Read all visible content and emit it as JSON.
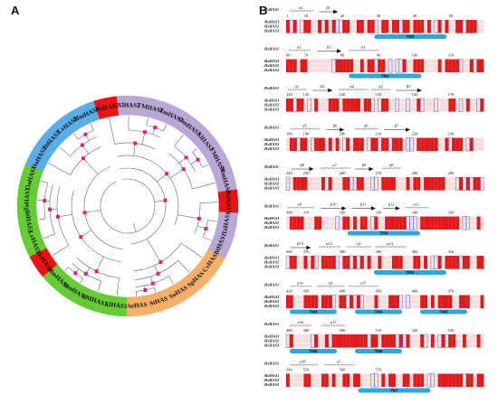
{
  "figure": {
    "panel_a_label": "A",
    "panel_b_label": "B"
  },
  "tree": {
    "leaves": [
      {
        "name": "HsHAS2",
        "group": "red"
      },
      {
        "name": "XlHAS2",
        "group": "purple"
      },
      {
        "name": "FMHAS2",
        "group": "purple"
      },
      {
        "name": "XmHAS2",
        "group": "purple"
      },
      {
        "name": "OmHAS1",
        "group": "purple"
      },
      {
        "name": "XlHAS1",
        "group": "purple"
      },
      {
        "name": "FMHAS1",
        "group": "purple"
      },
      {
        "name": "MmHAS1",
        "group": "purple"
      },
      {
        "name": "HsHAS1",
        "group": "red"
      },
      {
        "name": "TaHAS1",
        "group": "purple"
      },
      {
        "name": "BtHAS1",
        "group": "purple"
      },
      {
        "name": "CvHAS",
        "group": "orange"
      },
      {
        "name": "SpHAS",
        "group": "orange"
      },
      {
        "name": "SuHAS",
        "group": "orange"
      },
      {
        "name": "StHAS",
        "group": "orange"
      },
      {
        "name": "SeHAS",
        "group": "orange"
      },
      {
        "name": "XlHAS3",
        "group": "green"
      },
      {
        "name": "FMHAS3",
        "group": "green"
      },
      {
        "name": "XmHAS3",
        "group": "green"
      },
      {
        "name": "MmHAS3",
        "group": "green"
      },
      {
        "name": "HsHAS3",
        "group": "red"
      },
      {
        "name": "LvHAS3",
        "group": "green"
      },
      {
        "name": "BtHAS3",
        "group": "green"
      },
      {
        "name": "TaHAS3",
        "group": "green"
      },
      {
        "name": "OaHAS3",
        "group": "green"
      },
      {
        "name": "OaHAS2",
        "group": "blue"
      },
      {
        "name": "BtHAS2",
        "group": "blue"
      },
      {
        "name": "LvHAS2",
        "group": "blue"
      },
      {
        "name": "MmHAS2",
        "group": "blue"
      }
    ],
    "colors": {
      "red": "#ee1111",
      "purple": "#b9a7d6",
      "orange": "#f7b06a",
      "green": "#66cc33",
      "blue": "#5aaee8",
      "node": "#e0207a"
    }
  },
  "alignment": {
    "sequence_names": [
      "HaHAS1",
      "HsHAS2",
      "HsHAS3"
    ],
    "reference_name": "HsHAS1",
    "blocks": [
      {
        "start": "1",
        "ticks": [
          "10",
          "20",
          "30",
          "40",
          "50"
        ],
        "ss": [
          "α1",
          "β1"
        ],
        "tm": [
          "TM1"
        ]
      },
      {
        "start": "60",
        "ticks": [
          "70",
          "80",
          "90",
          "100",
          "110"
        ],
        "ss": [
          "α2",
          "β3",
          "α3"
        ],
        "tm": [
          "TM2"
        ]
      },
      {
        "start": "120",
        "ticks": [
          "130",
          "140",
          "150",
          "160",
          "170"
        ],
        "ss": [
          "η1",
          "β4",
          "α4",
          "η2",
          "β5"
        ],
        "tm": []
      },
      {
        "start": "180",
        "ticks": [
          "190",
          "200",
          "210",
          "220",
          "230"
        ],
        "ss": [
          "α5",
          "β6",
          "α6",
          "β7"
        ],
        "tm": []
      },
      {
        "start": "240",
        "ticks": [
          "250",
          "260",
          "270",
          "280",
          "290"
        ],
        "ss": [
          "β8",
          "α7",
          "β9",
          "α8"
        ],
        "tm": []
      },
      {
        "start": "300",
        "ticks": [
          "310",
          "320",
          "330",
          "340",
          "350"
        ],
        "ss": [
          "α9",
          "β10",
          "β11",
          "β12",
          "α11"
        ],
        "tm": [
          "TM3"
        ]
      },
      {
        "start": "360",
        "ticks": [
          "370",
          "380",
          "390",
          "400",
          "410"
        ],
        "ss": [
          "β13",
          "α12",
          "η3",
          "α13"
        ],
        "tm": [
          "TM3"
        ]
      },
      {
        "start": "420",
        "ticks": [
          "430",
          "440",
          "450",
          "460",
          "470"
        ],
        "ss": [
          "α14",
          "η4",
          "α15"
        ],
        "tm": [
          "TM3",
          "TM4",
          "TM5"
        ]
      },
      {
        "start": "480",
        "ticks": [
          "490",
          "500",
          "510",
          "520",
          "530"
        ],
        "ss": [
          "α16",
          "α17"
        ],
        "tm": [
          "TM5",
          "TM6"
        ]
      },
      {
        "start": "540",
        "ticks": [
          "550",
          "560",
          "570"
        ],
        "ss": [
          "α18",
          "η5"
        ],
        "tm": [
          "TM7"
        ]
      }
    ]
  }
}
